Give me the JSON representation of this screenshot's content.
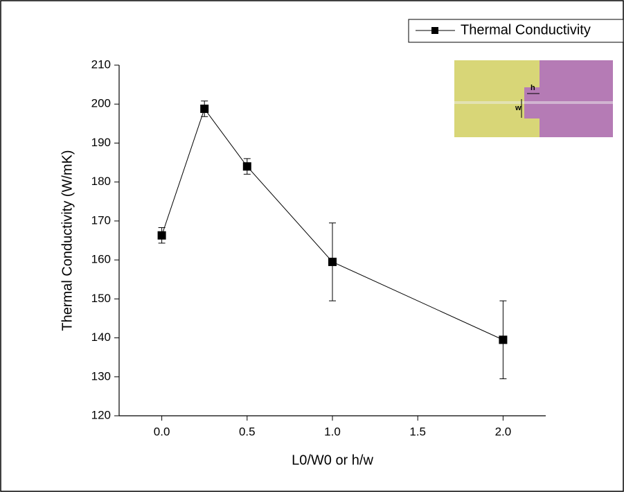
{
  "chart_data": {
    "type": "line",
    "x_label": "L0/W0 or h/w",
    "y_label": "Thermal Conductivity (W/mK)",
    "x": [
      0,
      0.25,
      0.5,
      1.0,
      2.0
    ],
    "series": [
      {
        "name": "Thermal Conductivity",
        "color": "#000000",
        "values": [
          166.3,
          198.8,
          184.0,
          159.5,
          139.5
        ],
        "errors": [
          2,
          2,
          2,
          10,
          10
        ]
      }
    ],
    "xlim": [
      -0.25,
      2.25
    ],
    "xticks": [
      {
        "value": 0,
        "label": "0.0"
      },
      0.5,
      {
        "value": 1,
        "label": "1.0"
      },
      1.5,
      {
        "value": 2,
        "label": "2.0"
      }
    ],
    "ylim": [
      120,
      210
    ],
    "yticks": [
      120,
      130,
      140,
      150,
      160,
      170,
      180,
      190,
      200,
      210
    ],
    "grid": false,
    "legend": "top-right",
    "inset_labels": [
      "w",
      "h"
    ]
  }
}
